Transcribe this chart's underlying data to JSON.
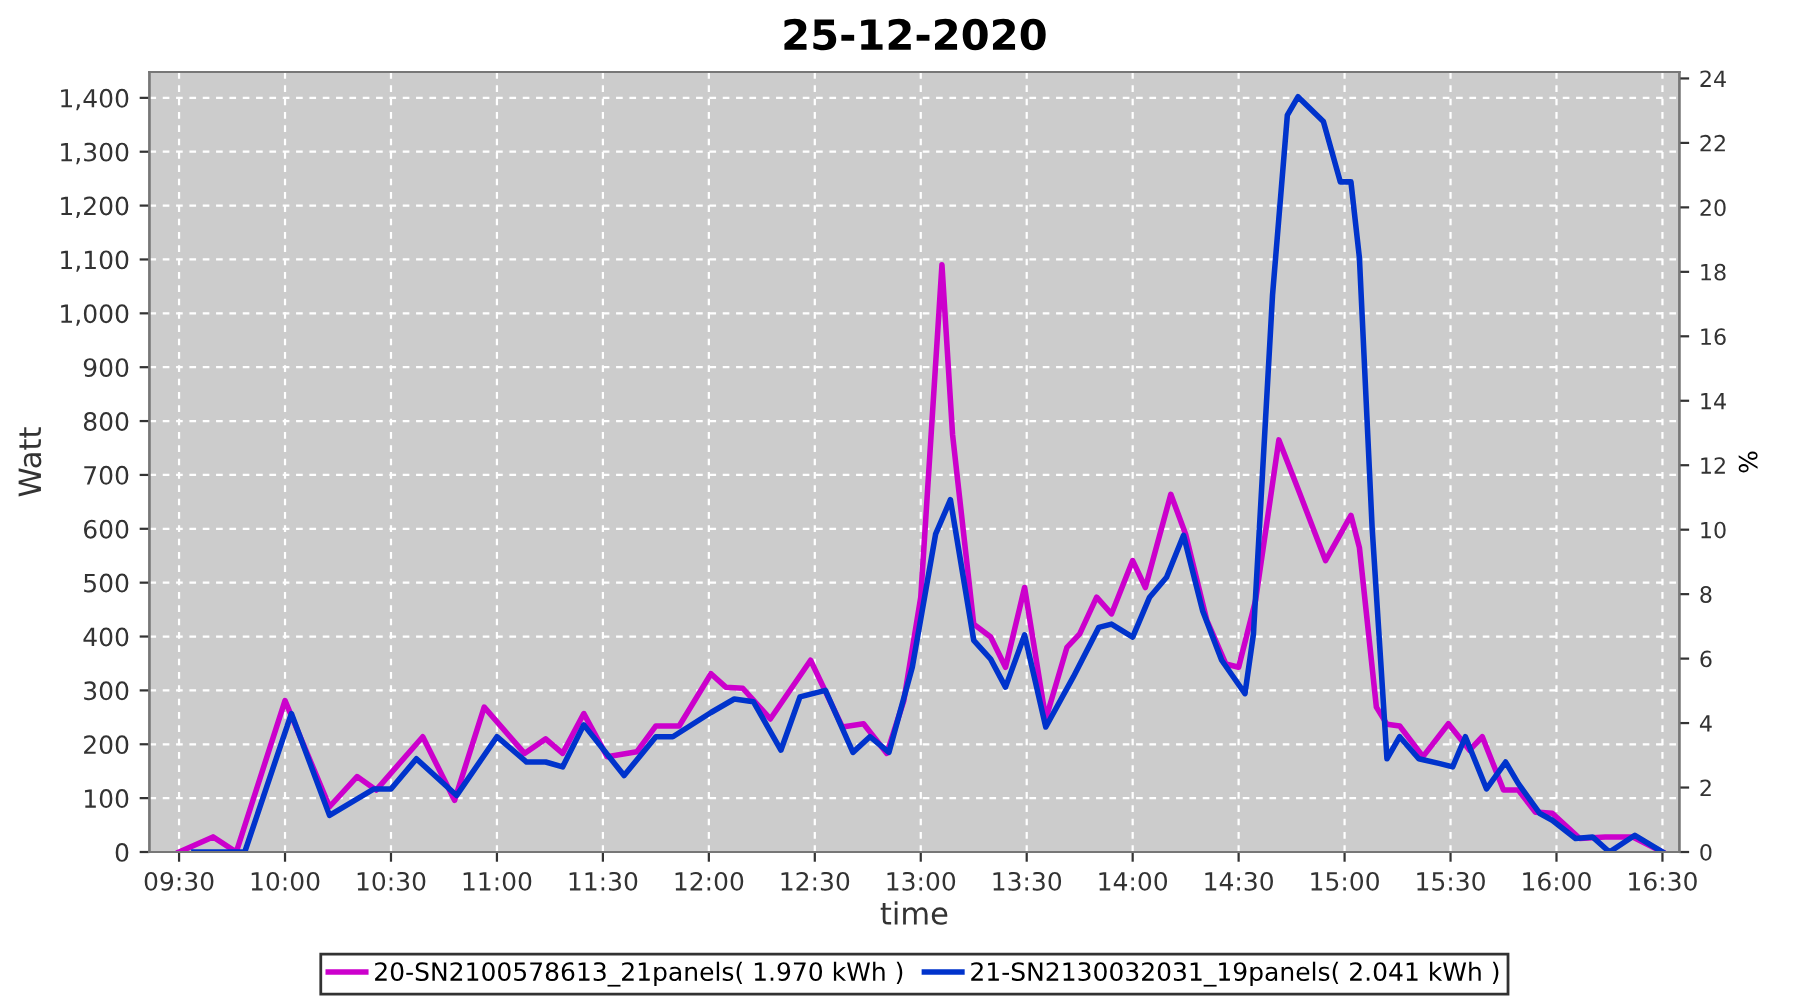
{
  "chart_data": {
    "type": "line",
    "title": "25-12-2020",
    "xlabel": "time",
    "ylabel": "Watt",
    "y2label": "%",
    "xlim": [
      9.36,
      16.58
    ],
    "xticks": [
      {
        "value": 9.5,
        "label": "09:30"
      },
      {
        "value": 10,
        "label": "10:00"
      },
      {
        "value": 10.5,
        "label": "10:30"
      },
      {
        "value": 11,
        "label": "11:00"
      },
      {
        "value": 11.5,
        "label": "11:30"
      },
      {
        "value": 12,
        "label": "12:00"
      },
      {
        "value": 12.5,
        "label": "12:30"
      },
      {
        "value": 13,
        "label": "13:00"
      },
      {
        "value": 13.5,
        "label": "13:30"
      },
      {
        "value": 14,
        "label": "14:00"
      },
      {
        "value": 14.5,
        "label": "14:30"
      },
      {
        "value": 15,
        "label": "15:00"
      },
      {
        "value": 15.5,
        "label": "15:30"
      },
      {
        "value": 16,
        "label": "16:00"
      },
      {
        "value": 16.5,
        "label": "16:30"
      }
    ],
    "ylim": [
      0,
      1448
    ],
    "yticks": [
      {
        "value": 0,
        "label": "0"
      },
      {
        "value": 100,
        "label": "100"
      },
      {
        "value": 200,
        "label": "200"
      },
      {
        "value": 300,
        "label": "300"
      },
      {
        "value": 400,
        "label": "400"
      },
      {
        "value": 500,
        "label": "500"
      },
      {
        "value": 600,
        "label": "600"
      },
      {
        "value": 700,
        "label": "700"
      },
      {
        "value": 800,
        "label": "800"
      },
      {
        "value": 900,
        "label": "900"
      },
      {
        "value": 1000,
        "label": "1,000"
      },
      {
        "value": 1100,
        "label": "1,100"
      },
      {
        "value": 1200,
        "label": "1,200"
      },
      {
        "value": 1300,
        "label": "1,300"
      },
      {
        "value": 1400,
        "label": "1,400"
      }
    ],
    "y2lim": [
      0,
      24.2
    ],
    "y2ticks": [
      0,
      2,
      4,
      6,
      8,
      10,
      12,
      14,
      16,
      18,
      20,
      22,
      24
    ],
    "grid": true,
    "legend": "bottom",
    "marker": "none",
    "line_style": "solid",
    "series": [
      {
        "name": "20-SN2100578613_21panels( 1.970 kWh )",
        "color": "#cc00cc",
        "x": [
          9.5,
          9.66,
          9.77,
          10.0,
          10.21,
          10.34,
          10.43,
          10.65,
          10.8,
          10.94,
          11.13,
          11.23,
          11.31,
          11.41,
          11.52,
          11.66,
          11.75,
          11.86,
          12.01,
          12.08,
          12.16,
          12.29,
          12.48,
          12.63,
          12.73,
          12.84,
          12.92,
          13.0,
          13.1,
          13.15,
          13.25,
          13.33,
          13.4,
          13.49,
          13.59,
          13.69,
          13.75,
          13.83,
          13.9,
          14.0,
          14.06,
          14.18,
          14.25,
          14.35,
          14.44,
          14.5,
          14.58,
          14.69,
          14.79,
          14.91,
          15.03,
          15.07,
          15.15,
          15.2,
          15.26,
          15.37,
          15.49,
          15.59,
          15.65,
          15.75,
          15.82,
          15.9,
          15.98,
          16.11,
          16.23,
          16.36,
          16.5
        ],
        "values": [
          0,
          28,
          0,
          281,
          84,
          140,
          115,
          214,
          96,
          269,
          183,
          210,
          183,
          257,
          177,
          186,
          234,
          234,
          331,
          306,
          304,
          247,
          356,
          232,
          238,
          183,
          281,
          473,
          1090,
          775,
          423,
          399,
          343,
          491,
          247,
          380,
          405,
          473,
          442,
          541,
          491,
          664,
          590,
          430,
          349,
          343,
          467,
          765,
          664,
          541,
          625,
          565,
          269,
          237,
          234,
          177,
          238,
          189,
          214,
          115,
          115,
          74,
          72,
          25,
          28,
          28,
          0
        ]
      },
      {
        "name": "21-SN2130032031_19panels( 2.041 kWh )",
        "color": "#0033cc",
        "x": [
          9.57,
          9.81,
          10.03,
          10.21,
          10.42,
          10.5,
          10.62,
          10.81,
          11.0,
          11.14,
          11.23,
          11.31,
          11.41,
          11.6,
          11.75,
          11.83,
          12.01,
          12.12,
          12.21,
          12.34,
          12.43,
          12.55,
          12.68,
          12.76,
          12.85,
          12.96,
          13.07,
          13.14,
          13.25,
          13.33,
          13.4,
          13.49,
          13.59,
          13.72,
          13.84,
          13.9,
          14.0,
          14.08,
          14.16,
          14.24,
          14.33,
          14.42,
          14.53,
          14.57,
          14.66,
          14.73,
          14.78,
          14.9,
          14.98,
          15.03,
          15.07,
          15.13,
          15.2,
          15.26,
          15.35,
          15.45,
          15.51,
          15.57,
          15.67,
          15.76,
          15.82,
          15.92,
          15.98,
          16.09,
          16.17,
          16.25,
          16.37,
          16.5
        ],
        "values": [
          0,
          0,
          257,
          68,
          117,
          117,
          173,
          105,
          214,
          167,
          167,
          158,
          236,
          142,
          214,
          214,
          259,
          284,
          279,
          189,
          288,
          300,
          185,
          214,
          185,
          343,
          590,
          654,
          393,
          358,
          306,
          403,
          232,
          325,
          417,
          423,
          399,
          473,
          510,
          588,
          448,
          356,
          294,
          405,
          1034,
          1368,
          1402,
          1356,
          1244,
          1244,
          1103,
          602,
          173,
          214,
          173,
          164,
          158,
          214,
          117,
          167,
          127,
          72,
          59,
          25,
          28,
          0,
          31,
          0
        ]
      }
    ]
  }
}
